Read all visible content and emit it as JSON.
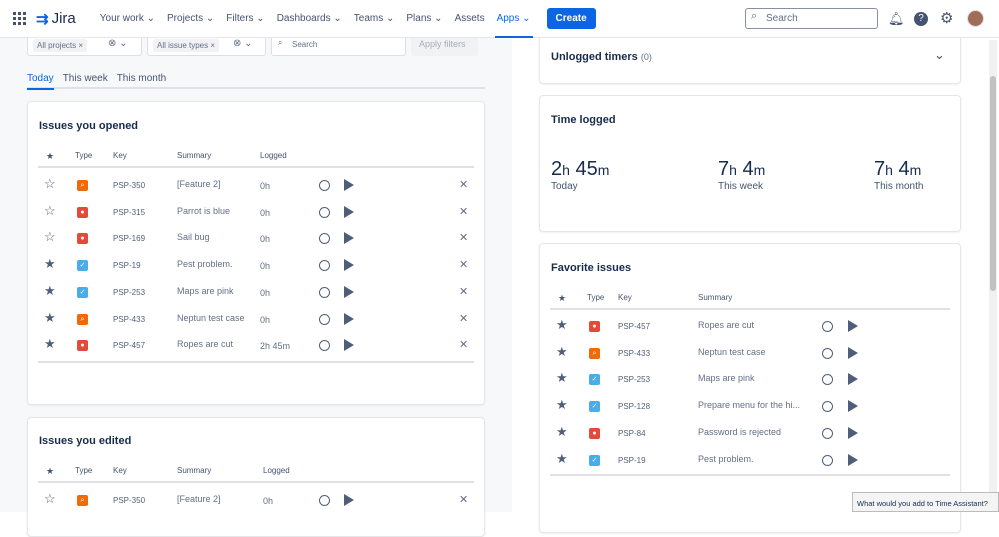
{
  "header": {
    "app": "Jira",
    "nav": [
      "Your work ⌄",
      "Projects ⌄",
      "Filters ⌄",
      "Dashboards ⌄",
      "Teams ⌄",
      "Plans ⌄",
      "Assets",
      "Apps ⌄"
    ],
    "active_nav": "Apps",
    "create": "Create",
    "search_placeholder": "Search"
  },
  "filters": {
    "projects": "All projects",
    "issue_types": "All issue types",
    "search_placeholder": "Search",
    "apply": "Apply filters"
  },
  "tabs": [
    "Today",
    "This week",
    "This month"
  ],
  "opened": {
    "title": "Issues you opened",
    "headers": [
      "Type",
      "Key",
      "Summary",
      "Logged"
    ],
    "rows": [
      {
        "starred": false,
        "type": "test",
        "key": "PSP-350",
        "summary": "[Feature 2]",
        "logged": "0h"
      },
      {
        "starred": false,
        "type": "bug",
        "key": "PSP-315",
        "summary": "Parrot is blue",
        "logged": "0h"
      },
      {
        "starred": false,
        "type": "bug",
        "key": "PSP-169",
        "summary": "Sail bug",
        "logged": "0h"
      },
      {
        "starred": true,
        "type": "task",
        "key": "PSP-19",
        "summary": "Pest problem.",
        "logged": "0h"
      },
      {
        "starred": true,
        "type": "task",
        "key": "PSP-253",
        "summary": "Maps are pink",
        "logged": "0h"
      },
      {
        "starred": true,
        "type": "test",
        "key": "PSP-433",
        "summary": "Neptun test case",
        "logged": "0h"
      },
      {
        "starred": true,
        "type": "bug",
        "key": "PSP-457",
        "summary": "Ropes are cut",
        "logged": "2h 45m"
      }
    ]
  },
  "edited": {
    "title": "Issues you edited",
    "headers": [
      "Type",
      "Key",
      "Summary",
      "Logged"
    ],
    "rows": [
      {
        "starred": false,
        "type": "test",
        "key": "PSP-350",
        "summary": "[Feature 2]",
        "logged": "0h"
      }
    ]
  },
  "unlogged": {
    "title": "Unlogged timers",
    "count": "(0)"
  },
  "time_logged": {
    "title": "Time logged",
    "stats": [
      {
        "h": "2",
        "m": "45",
        "label": "Today"
      },
      {
        "h": "7",
        "m": "4",
        "label": "This week"
      },
      {
        "h": "7",
        "m": "4",
        "label": "This month"
      }
    ]
  },
  "favorites": {
    "title": "Favorite issues",
    "headers": [
      "Type",
      "Key",
      "Summary"
    ],
    "rows": [
      {
        "type": "bug",
        "key": "PSP-457",
        "summary": "Ropes are cut"
      },
      {
        "type": "test",
        "key": "PSP-433",
        "summary": "Neptun test case"
      },
      {
        "type": "task",
        "key": "PSP-253",
        "summary": "Maps are pink"
      },
      {
        "type": "task",
        "key": "PSP-128",
        "summary": "Prepare menu for the hi..."
      },
      {
        "type": "bug",
        "key": "PSP-84",
        "summary": "Password is rejected"
      },
      {
        "type": "task",
        "key": "PSP-19",
        "summary": "Pest problem."
      }
    ]
  },
  "feedback": "What would you add to Time Assistant?",
  "colors": {
    "accent": "#0c66e4",
    "bug": "#e5493a",
    "test": "#f06a0a",
    "task": "#4bade8"
  }
}
